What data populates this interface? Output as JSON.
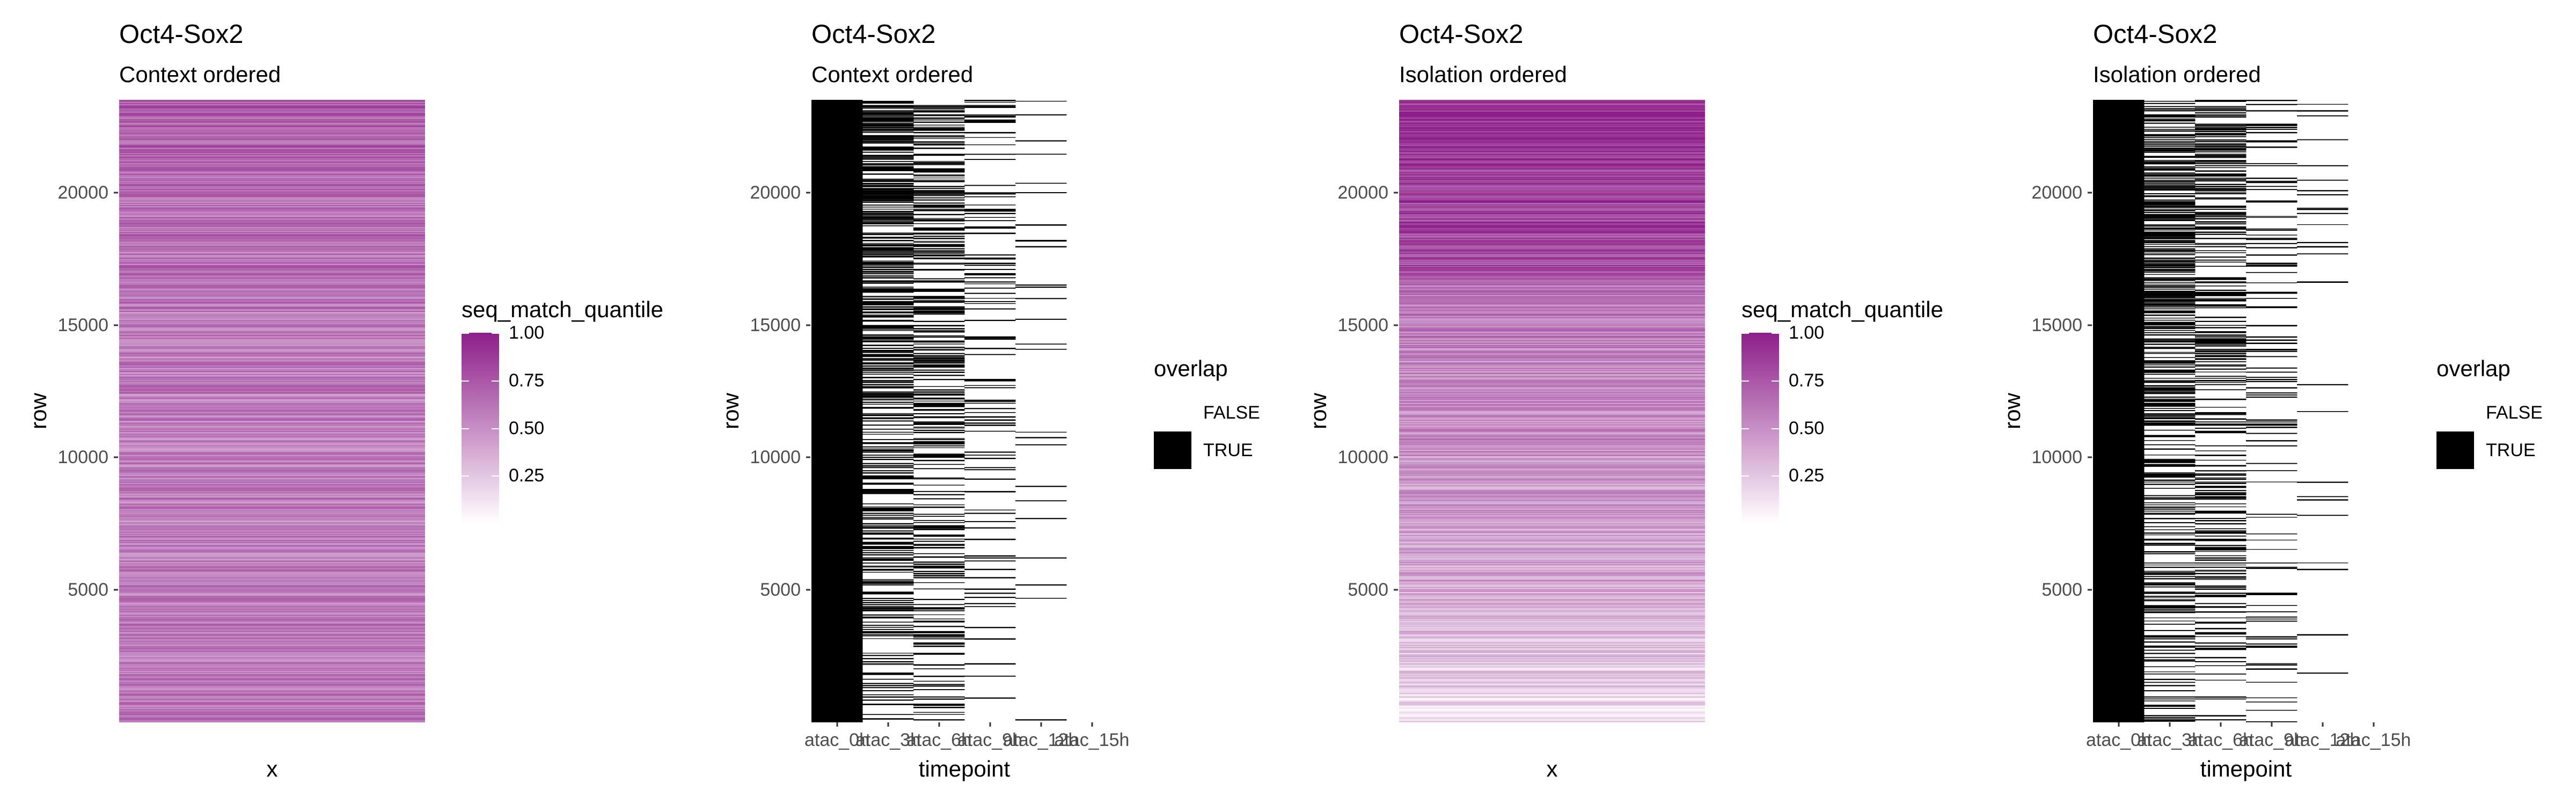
{
  "chart_data": [
    {
      "type": "heatmap",
      "title": "Oct4-Sox2",
      "subtitle": "Context ordered",
      "xlabel": "x",
      "ylabel": "row",
      "ylim": [
        1,
        23500
      ],
      "y_ticks": [
        "5000",
        "10000",
        "15000",
        "20000"
      ],
      "x_ticks": [],
      "legend": {
        "title": "seq_match_quantile",
        "kind": "continuous",
        "labels": [
          "1.00",
          "0.75",
          "0.50",
          "0.25"
        ],
        "range": [
          0,
          1
        ],
        "low_color": "#ffffff",
        "high_color": "#8e1e8a",
        "position": "right"
      },
      "value_profile": [
        {
          "row": 0,
          "mean": 0.6
        },
        {
          "row": 5000,
          "mean": 0.58
        },
        {
          "row": 10000,
          "mean": 0.56
        },
        {
          "row": 15000,
          "mean": 0.6
        },
        {
          "row": 20000,
          "mean": 0.66
        },
        {
          "row": 23500,
          "mean": 0.7
        }
      ]
    },
    {
      "type": "heatmap",
      "title": "Oct4-Sox2",
      "subtitle": "Context ordered",
      "xlabel": "timepoint",
      "ylabel": "row",
      "ylim": [
        1,
        23500
      ],
      "y_ticks": [
        "5000",
        "10000",
        "15000",
        "20000"
      ],
      "categories": [
        "atac_0h",
        "atac_3h",
        "atac_6h",
        "atac_9h",
        "atac_12h",
        "atac_15h"
      ],
      "overlap_true_fraction": [
        1.0,
        0.55,
        0.4,
        0.15,
        0.05,
        0.0
      ],
      "legend": {
        "title": "overlap",
        "kind": "discrete",
        "labels": [
          "FALSE",
          "TRUE"
        ],
        "colors": [
          "#ffffff",
          "#000000"
        ],
        "position": "right"
      }
    },
    {
      "type": "heatmap",
      "title": "Oct4-Sox2",
      "subtitle": "Isolation ordered",
      "xlabel": "x",
      "ylabel": "row",
      "ylim": [
        1,
        23500
      ],
      "y_ticks": [
        "5000",
        "10000",
        "15000",
        "20000"
      ],
      "x_ticks": [],
      "legend": {
        "title": "seq_match_quantile",
        "kind": "continuous",
        "labels": [
          "1.00",
          "0.75",
          "0.50",
          "0.25"
        ],
        "range": [
          0,
          1
        ],
        "low_color": "#ffffff",
        "high_color": "#8e1e8a",
        "position": "right"
      },
      "value_profile": [
        {
          "row": 0,
          "mean": 0.15
        },
        {
          "row": 2000,
          "mean": 0.25
        },
        {
          "row": 5000,
          "mean": 0.38
        },
        {
          "row": 10000,
          "mean": 0.48
        },
        {
          "row": 15000,
          "mean": 0.58
        },
        {
          "row": 16500,
          "mean": 0.62
        },
        {
          "row": 17000,
          "mean": 0.8
        },
        {
          "row": 20000,
          "mean": 0.85
        },
        {
          "row": 23500,
          "mean": 0.92
        }
      ]
    },
    {
      "type": "heatmap",
      "title": "Oct4-Sox2",
      "subtitle": "Isolation ordered",
      "xlabel": "timepoint",
      "ylabel": "row",
      "ylim": [
        1,
        23500
      ],
      "y_ticks": [
        "5000",
        "10000",
        "15000",
        "20000"
      ],
      "categories": [
        "atac_0h",
        "atac_3h",
        "atac_6h",
        "atac_9h",
        "atac_12h",
        "atac_15h"
      ],
      "overlap_true_fraction": [
        1.0,
        0.5,
        0.35,
        0.15,
        0.04,
        0.0
      ],
      "legend": {
        "title": "overlap",
        "kind": "discrete",
        "labels": [
          "FALSE",
          "TRUE"
        ],
        "colors": [
          "#ffffff",
          "#000000"
        ],
        "position": "right"
      }
    }
  ]
}
